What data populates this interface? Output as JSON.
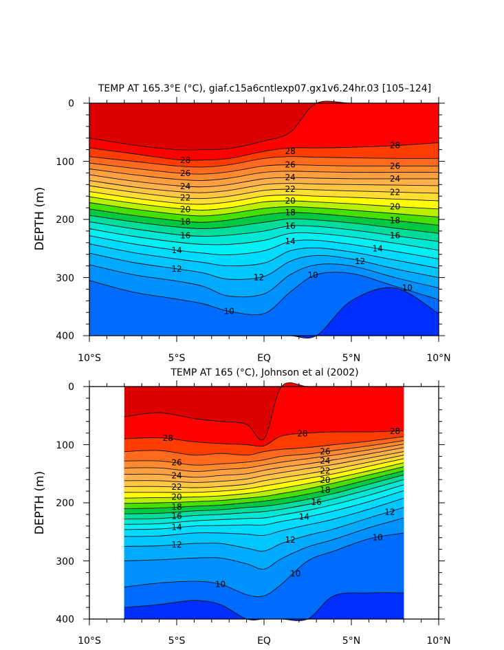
{
  "chart_data": [
    {
      "type": "contour",
      "title": "TEMP AT 165.3°E (°C), giaf.c15a6cntlexp07.gx1v6.24hr.03 [105–124]",
      "xlabel": "",
      "ylabel": "DEPTH (m)",
      "xlim": [
        -10,
        10
      ],
      "ylim": [
        400,
        0
      ],
      "x_ticks": [
        -10,
        -5,
        0,
        5,
        10
      ],
      "x_tick_labels": [
        "10°S",
        "5°S",
        "EQ",
        "5°N",
        "10°N"
      ],
      "y_ticks": [
        0,
        100,
        200,
        300,
        400
      ],
      "y_tick_labels": [
        "0",
        "100",
        "200",
        "300",
        "400"
      ],
      "contour_interval": 1,
      "x_nodes": [
        -10,
        -7.5,
        -5,
        -3.5,
        -2,
        0,
        1.5,
        3,
        5,
        7.5,
        10
      ],
      "isotherm_depths": [
        {
          "value": 29,
          "depths": [
            60,
            72,
            80,
            80,
            78,
            65,
            50,
            0,
            0,
            0,
            0
          ]
        },
        {
          "value": 28,
          "depths": [
            77,
            87,
            97,
            98,
            95,
            83,
            77,
            77,
            76,
            73,
            68
          ]
        },
        {
          "value": 27,
          "depths": [
            92,
            100,
            108,
            110,
            106,
            95,
            92,
            93,
            94,
            95,
            95
          ]
        },
        {
          "value": 26,
          "depths": [
            103,
            112,
            120,
            122,
            118,
            108,
            106,
            107,
            108,
            108,
            108
          ]
        },
        {
          "value": 25,
          "depths": [
            113,
            123,
            131,
            133,
            129,
            119,
            117,
            118,
            119,
            119,
            119
          ]
        },
        {
          "value": 24,
          "depths": [
            123,
            134,
            142,
            144,
            140,
            130,
            128,
            129,
            130,
            130,
            130
          ]
        },
        {
          "value": 23,
          "depths": [
            133,
            144,
            152,
            154,
            150,
            140,
            138,
            139,
            140,
            141,
            142
          ]
        },
        {
          "value": 22,
          "depths": [
            142,
            153,
            162,
            164,
            160,
            150,
            148,
            149,
            151,
            153,
            155
          ]
        },
        {
          "value": 21,
          "depths": [
            152,
            163,
            172,
            174,
            170,
            160,
            158,
            160,
            162,
            165,
            168
          ]
        },
        {
          "value": 20,
          "depths": [
            161,
            172,
            181,
            184,
            180,
            170,
            168,
            170,
            173,
            178,
            182
          ]
        },
        {
          "value": 19,
          "depths": [
            171,
            182,
            191,
            194,
            190,
            181,
            178,
            180,
            184,
            190,
            196
          ]
        },
        {
          "value": 18,
          "depths": [
            182,
            193,
            202,
            205,
            201,
            192,
            188,
            190,
            195,
            202,
            210
          ]
        },
        {
          "value": 17,
          "depths": [
            193,
            204,
            213,
            216,
            213,
            205,
            199,
            201,
            206,
            215,
            224
          ]
        },
        {
          "value": 16,
          "depths": [
            204,
            216,
            226,
            229,
            227,
            220,
            211,
            212,
            218,
            228,
            238
          ]
        },
        {
          "value": 15,
          "depths": [
            216,
            229,
            239,
            243,
            243,
            236,
            224,
            224,
            230,
            241,
            253
          ]
        },
        {
          "value": 14,
          "depths": [
            228,
            242,
            253,
            258,
            261,
            254,
            238,
            236,
            243,
            255,
            268
          ]
        },
        {
          "value": 13,
          "depths": [
            242,
            257,
            268,
            274,
            280,
            275,
            254,
            249,
            256,
            270,
            284
          ]
        },
        {
          "value": 12,
          "depths": [
            258,
            274,
            285,
            292,
            303,
            298,
            272,
            262,
            268,
            285,
            300
          ]
        },
        {
          "value": 11,
          "depths": [
            278,
            295,
            306,
            315,
            332,
            328,
            295,
            278,
            280,
            300,
            318
          ]
        },
        {
          "value": 10,
          "depths": [
            305,
            325,
            337,
            345,
            358,
            362,
            325,
            295,
            293,
            315,
            338
          ]
        },
        {
          "value": 9,
          "depths": [
            400,
            400,
            400,
            400,
            400,
            400,
            400,
            400,
            340,
            318,
            362
          ]
        }
      ],
      "contour_labels": [
        {
          "text": "28",
          "x": -4.5,
          "depth": 98
        },
        {
          "text": "28",
          "x": 1.5,
          "depth": 83
        },
        {
          "text": "28",
          "x": 7.5,
          "depth": 73
        },
        {
          "text": "26",
          "x": -4.5,
          "depth": 121
        },
        {
          "text": "26",
          "x": 1.5,
          "depth": 106
        },
        {
          "text": "26",
          "x": 7.5,
          "depth": 108
        },
        {
          "text": "24",
          "x": -4.5,
          "depth": 143
        },
        {
          "text": "24",
          "x": 1.5,
          "depth": 128
        },
        {
          "text": "24",
          "x": 7.5,
          "depth": 130
        },
        {
          "text": "22",
          "x": -4.5,
          "depth": 163
        },
        {
          "text": "22",
          "x": 1.5,
          "depth": 148
        },
        {
          "text": "22",
          "x": 7.5,
          "depth": 153
        },
        {
          "text": "20",
          "x": -4.5,
          "depth": 183
        },
        {
          "text": "20",
          "x": 1.5,
          "depth": 168
        },
        {
          "text": "20",
          "x": 7.5,
          "depth": 178
        },
        {
          "text": "18",
          "x": -4.5,
          "depth": 204
        },
        {
          "text": "18",
          "x": 1.5,
          "depth": 188
        },
        {
          "text": "18",
          "x": 7.5,
          "depth": 202
        },
        {
          "text": "16",
          "x": -4.5,
          "depth": 228
        },
        {
          "text": "16",
          "x": 1.5,
          "depth": 211
        },
        {
          "text": "16",
          "x": 7.5,
          "depth": 228
        },
        {
          "text": "14",
          "x": -5,
          "depth": 253
        },
        {
          "text": "14",
          "x": 1.5,
          "depth": 238
        },
        {
          "text": "14",
          "x": 6.5,
          "depth": 250
        },
        {
          "text": "12",
          "x": -5,
          "depth": 285
        },
        {
          "text": "12",
          "x": -0.3,
          "depth": 300
        },
        {
          "text": "12",
          "x": 5.5,
          "depth": 272
        },
        {
          "text": "10",
          "x": -2,
          "depth": 358
        },
        {
          "text": "10",
          "x": 2.8,
          "depth": 296
        },
        {
          "text": "10",
          "x": 8.2,
          "depth": 318
        }
      ]
    },
    {
      "type": "contour",
      "title": "TEMP AT 165 (°C), Johnson et al (2002)",
      "xlabel": "",
      "ylabel": "DEPTH (m)",
      "xlim": [
        -10,
        10
      ],
      "ylim": [
        400,
        0
      ],
      "data_x_range": [
        -8,
        8
      ],
      "x_ticks": [
        -10,
        -5,
        0,
        5,
        10
      ],
      "x_tick_labels": [
        "10°S",
        "5°S",
        "EQ",
        "5°N",
        "10°N"
      ],
      "y_ticks": [
        0,
        100,
        200,
        300,
        400
      ],
      "y_tick_labels": [
        "0",
        "100",
        "200",
        "300",
        "400"
      ],
      "contour_interval": 1,
      "x_nodes": [
        -8,
        -6,
        -4,
        -2.5,
        -1,
        0,
        1,
        2.5,
        4,
        6,
        8
      ],
      "isotherm_depths": [
        {
          "value": 29,
          "depths": [
            52,
            45,
            55,
            60,
            65,
            90,
            0,
            0,
            0,
            0,
            0
          ]
        },
        {
          "value": 28,
          "depths": [
            90,
            88,
            95,
            98,
            100,
            102,
            85,
            80,
            78,
            78,
            76
          ]
        },
        {
          "value": 27,
          "depths": [
            112,
            110,
            118,
            115,
            118,
            112,
            108,
            105,
            100,
            94,
            86
          ]
        },
        {
          "value": 26,
          "depths": [
            128,
            128,
            135,
            133,
            130,
            126,
            120,
            116,
            110,
            102,
            93
          ]
        },
        {
          "value": 25,
          "depths": [
            140,
            140,
            146,
            143,
            140,
            135,
            130,
            124,
            118,
            109,
            99
          ]
        },
        {
          "value": 24,
          "depths": [
            151,
            151,
            156,
            153,
            150,
            144,
            139,
            133,
            126,
            116,
            105
          ]
        },
        {
          "value": 23,
          "depths": [
            162,
            162,
            165,
            163,
            159,
            153,
            148,
            141,
            134,
            123,
            112
          ]
        },
        {
          "value": 22,
          "depths": [
            172,
            172,
            174,
            172,
            168,
            162,
            157,
            150,
            142,
            130,
            118
          ]
        },
        {
          "value": 21,
          "depths": [
            182,
            182,
            182,
            180,
            176,
            171,
            166,
            158,
            150,
            137,
            124
          ]
        },
        {
          "value": 20,
          "depths": [
            192,
            191,
            190,
            188,
            184,
            180,
            175,
            167,
            158,
            145,
            131
          ]
        },
        {
          "value": 19,
          "depths": [
            201,
            200,
            198,
            196,
            192,
            189,
            184,
            176,
            166,
            152,
            138
          ]
        },
        {
          "value": 18,
          "depths": [
            210,
            209,
            206,
            204,
            200,
            197,
            193,
            185,
            175,
            160,
            145
          ]
        },
        {
          "value": 17,
          "depths": [
            219,
            218,
            214,
            212,
            208,
            206,
            202,
            194,
            184,
            168,
            152
          ]
        },
        {
          "value": 16,
          "depths": [
            228,
            227,
            222,
            220,
            217,
            215,
            211,
            203,
            193,
            177,
            160
          ]
        },
        {
          "value": 15,
          "depths": [
            237,
            236,
            231,
            229,
            227,
            226,
            221,
            213,
            203,
            187,
            169
          ]
        },
        {
          "value": 14,
          "depths": [
            246,
            245,
            240,
            239,
            238,
            238,
            232,
            224,
            214,
            198,
            179
          ]
        },
        {
          "value": 13,
          "depths": [
            258,
            257,
            252,
            252,
            254,
            256,
            248,
            238,
            228,
            211,
            192
          ]
        },
        {
          "value": 12,
          "depths": [
            275,
            274,
            270,
            270,
            278,
            283,
            270,
            256,
            245,
            226,
            208
          ]
        },
        {
          "value": 11,
          "depths": [
            300,
            298,
            295,
            295,
            305,
            314,
            296,
            276,
            263,
            243,
            226
          ]
        },
        {
          "value": 10,
          "depths": [
            345,
            338,
            335,
            340,
            358,
            360,
            340,
            300,
            283,
            262,
            252
          ]
        },
        {
          "value": 9,
          "depths": [
            380,
            375,
            368,
            375,
            400,
            400,
            400,
            400,
            360,
            355,
            355
          ]
        }
      ],
      "contour_labels": [
        {
          "text": "28",
          "x": -5.5,
          "depth": 89
        },
        {
          "text": "28",
          "x": 2.2,
          "depth": 81
        },
        {
          "text": "28",
          "x": 7.5,
          "depth": 77
        },
        {
          "text": "26",
          "x": -5,
          "depth": 131
        },
        {
          "text": "26",
          "x": 3.5,
          "depth": 112
        },
        {
          "text": "24",
          "x": -5,
          "depth": 153
        },
        {
          "text": "24",
          "x": 3.5,
          "depth": 128
        },
        {
          "text": "22",
          "x": -5,
          "depth": 173
        },
        {
          "text": "22",
          "x": 3.5,
          "depth": 145
        },
        {
          "text": "20",
          "x": -5,
          "depth": 190
        },
        {
          "text": "20",
          "x": 3.5,
          "depth": 161
        },
        {
          "text": "18",
          "x": -5,
          "depth": 207
        },
        {
          "text": "18",
          "x": 3.5,
          "depth": 178
        },
        {
          "text": "16",
          "x": -5,
          "depth": 223
        },
        {
          "text": "16",
          "x": 3,
          "depth": 199
        },
        {
          "text": "14",
          "x": -5,
          "depth": 242
        },
        {
          "text": "14",
          "x": 2.3,
          "depth": 224
        },
        {
          "text": "12",
          "x": -5,
          "depth": 272
        },
        {
          "text": "12",
          "x": 1.5,
          "depth": 264
        },
        {
          "text": "12",
          "x": 7.2,
          "depth": 216
        },
        {
          "text": "10",
          "x": -2.5,
          "depth": 340
        },
        {
          "text": "10",
          "x": 1.8,
          "depth": 322
        },
        {
          "text": "10",
          "x": 6.5,
          "depth": 260
        }
      ]
    }
  ],
  "colors": {
    "29": "#dd0000",
    "28": "#ff0000",
    "27": "#ff3d00",
    "26": "#ff6a1e",
    "25": "#ff8a2e",
    "24": "#ffa040",
    "23": "#ffb24a",
    "22": "#ffc644",
    "21": "#ffdd33",
    "20": "#ffff00",
    "19": "#b8f000",
    "18": "#46e000",
    "17": "#00c840",
    "16": "#00dd9a",
    "15": "#00e8d4",
    "14": "#00f0f4",
    "13": "#00dcff",
    "12": "#00c6ff",
    "11": "#00aaff",
    "10": "#0090ff",
    "9": "#006cff",
    "8": "#0030ff"
  }
}
